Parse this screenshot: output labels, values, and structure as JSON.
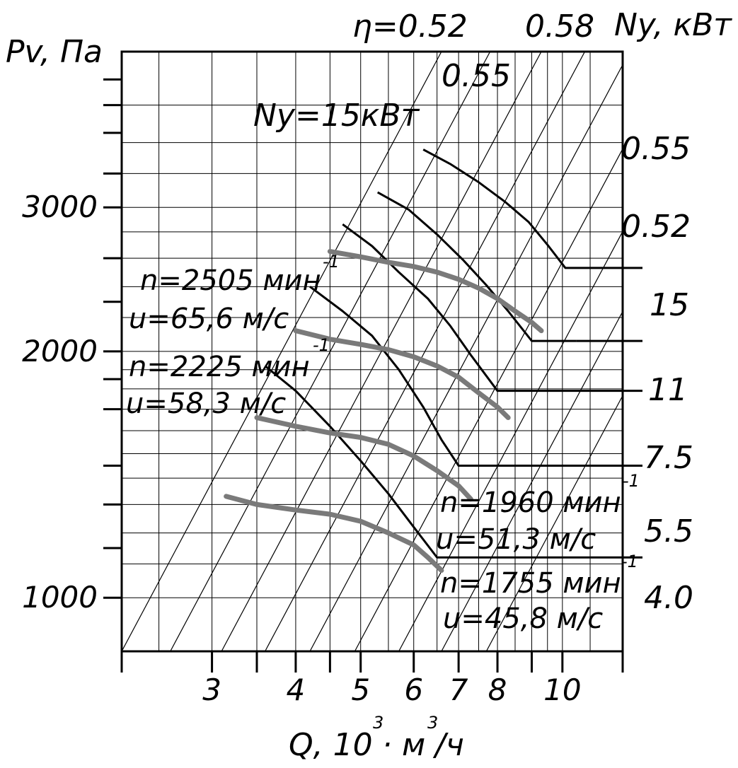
{
  "chart_data": {
    "type": "line",
    "x_axis": {
      "label": "Q, 10",
      "label_sup": "3",
      "label_unit": "· м",
      "label_unit_sup": "3",
      "label_unit_tail": "/ч",
      "ticks": [
        3,
        4,
        5,
        6,
        7,
        8,
        10
      ],
      "tick_labels": [
        "3",
        "4",
        "5",
        "6",
        "7",
        "8",
        "10"
      ],
      "scale": "log"
    },
    "y_axis": {
      "label": "Pv, Па",
      "ticks": [
        1000,
        2000,
        3000
      ],
      "tick_labels": [
        "1000",
        "2000",
        "3000"
      ],
      "scale": "log"
    },
    "power_axis": {
      "label": "Ny, кВт",
      "values": [
        "15",
        "11",
        "7.5",
        "5.5",
        "4.0"
      ]
    },
    "efficiency_lines": {
      "top_labels": [
        "η=0.52",
        "0.55",
        "0.58"
      ],
      "right_labels": [
        "0.55",
        "0.52"
      ]
    },
    "power_curve_label": "Ny=15кВт",
    "grid": true,
    "speed_curves": [
      {
        "rpm_label": "n=2505 мин",
        "rpm_sup": "-1",
        "tip_speed_label": "u=65,6 м/с",
        "x": [
          4.5,
          5.0,
          5.5,
          6.0,
          6.5,
          7.0,
          7.5,
          8.0,
          8.5,
          9.0,
          9.3
        ],
        "y": [
          2650,
          2610,
          2570,
          2540,
          2500,
          2450,
          2390,
          2320,
          2240,
          2170,
          2120
        ]
      },
      {
        "rpm_label": "n=2225 мин",
        "rpm_sup": "-1",
        "tip_speed_label": "u=58,3 м/с",
        "x": [
          4.0,
          4.5,
          5.0,
          5.5,
          6.0,
          6.5,
          7.0,
          7.5,
          8.0,
          8.3
        ],
        "y": [
          2120,
          2070,
          2040,
          2010,
          1970,
          1920,
          1860,
          1780,
          1710,
          1660
        ]
      },
      {
        "rpm_label": "n=1960 мин",
        "rpm_sup": "-1",
        "tip_speed_label": "u=51,3 м/с",
        "x": [
          3.5,
          4.0,
          4.5,
          5.0,
          5.5,
          6.0,
          6.5,
          7.0,
          7.3
        ],
        "y": [
          1660,
          1620,
          1590,
          1570,
          1540,
          1490,
          1430,
          1370,
          1320
        ]
      },
      {
        "rpm_label": "n=1755 мин",
        "rpm_sup": "-1",
        "tip_speed_label": "u=45,8 м/с",
        "x": [
          3.15,
          3.5,
          4.0,
          4.5,
          5.0,
          5.5,
          6.0,
          6.3,
          6.6
        ],
        "y": [
          1330,
          1300,
          1280,
          1265,
          1240,
          1200,
          1160,
          1120,
          1080
        ]
      }
    ],
    "power_limit_curves": [
      {
        "power": "15",
        "x": [
          6.2,
          6.8,
          7.5,
          8.2,
          8.9,
          9.5,
          10.1,
          11.5
        ],
        "y": [
          3530,
          3390,
          3220,
          3050,
          2880,
          2700,
          2530,
          2530
        ]
      },
      {
        "power": "11",
        "x": [
          5.3,
          5.9,
          6.5,
          7.1,
          7.7,
          8.3,
          9.0,
          10.5
        ],
        "y": [
          3130,
          2980,
          2780,
          2590,
          2410,
          2240,
          2060,
          2060
        ]
      },
      {
        "power": "7.5",
        "x": [
          4.7,
          5.2,
          5.7,
          6.3,
          6.8,
          7.3,
          8.0,
          10.0
        ],
        "y": [
          2860,
          2690,
          2500,
          2320,
          2150,
          1980,
          1790,
          1790
        ]
      },
      {
        "power": "5.5",
        "x": [
          4.2,
          4.7,
          5.2,
          5.7,
          6.2,
          6.6,
          7.0,
          8.0
        ],
        "y": [
          2400,
          2240,
          2090,
          1900,
          1710,
          1560,
          1450,
          1450
        ]
      },
      {
        "power": "4.0",
        "x": [
          3.6,
          4.0,
          4.5,
          5.0,
          5.5,
          6.0,
          6.5,
          7.0
        ],
        "y": [
          1920,
          1790,
          1620,
          1470,
          1340,
          1220,
          1120,
          1120
        ]
      }
    ]
  }
}
